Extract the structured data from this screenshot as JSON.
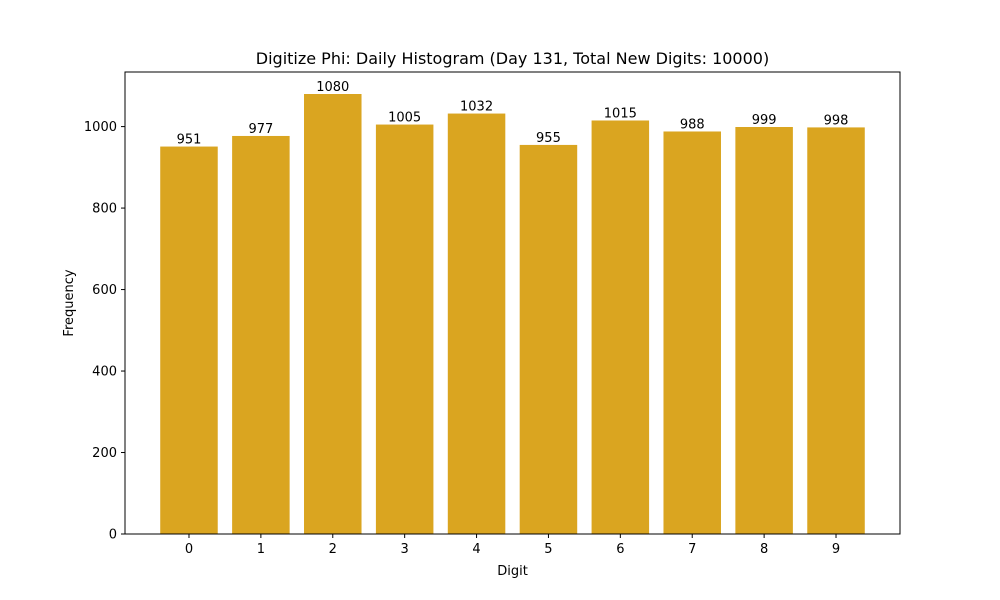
{
  "chart_data": {
    "type": "bar",
    "title": "Digitize Phi: Daily Histogram (Day 131, Total New Digits: 10000)",
    "xlabel": "Digit",
    "ylabel": "Frequency",
    "categories": [
      "0",
      "1",
      "2",
      "3",
      "4",
      "5",
      "6",
      "7",
      "8",
      "9"
    ],
    "values": [
      951,
      977,
      1080,
      1005,
      1032,
      955,
      1015,
      988,
      999,
      998
    ],
    "data_labels": [
      "951",
      "977",
      "1080",
      "1005",
      "1032",
      "955",
      "1015",
      "988",
      "999",
      "998"
    ],
    "yticks": [
      0,
      200,
      400,
      600,
      800,
      1000
    ],
    "ylim": [
      0,
      1134
    ],
    "grid": false,
    "legend": null,
    "bar_color": "#DAA520"
  }
}
